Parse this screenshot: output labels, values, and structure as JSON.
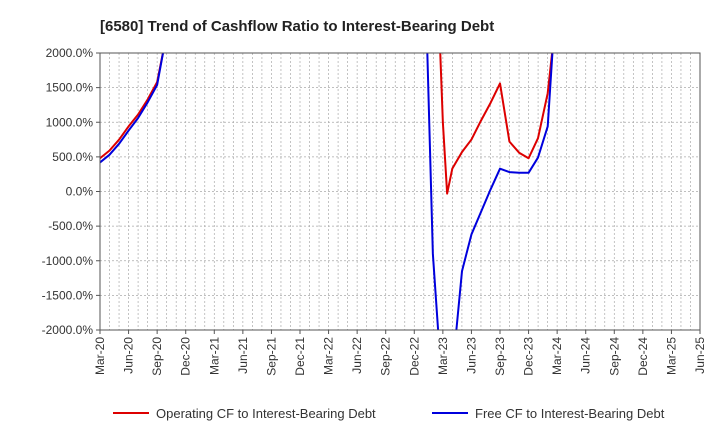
{
  "chart_data": {
    "type": "line",
    "title": "[6580]  Trend of Cashflow Ratio to Interest-Bearing Debt",
    "xlabel": "",
    "ylabel": "",
    "ylim": [
      -2000,
      2000
    ],
    "yticks": [
      2000,
      1500,
      1000,
      500,
      0,
      -500,
      -1000,
      -1500,
      -2000
    ],
    "ytick_labels": [
      "2000.0%",
      "1500.0%",
      "1000.0%",
      "500.0%",
      "0.0%",
      "-500.0%",
      "-1000.0%",
      "-1500.0%",
      "-2000.0%"
    ],
    "x_categories": [
      "Mar-20",
      "Jun-20",
      "Sep-20",
      "Dec-20",
      "Mar-21",
      "Jun-21",
      "Sep-21",
      "Dec-21",
      "Mar-22",
      "Jun-22",
      "Sep-22",
      "Dec-22",
      "Mar-23",
      "Jun-23",
      "Sep-23",
      "Dec-23",
      "Mar-24",
      "Jun-24",
      "Sep-24",
      "Dec-24",
      "Mar-25",
      "Jun-25"
    ],
    "grid": true,
    "grid_style": "dashed",
    "legend_position": "bottom",
    "series": [
      {
        "name": "Operating CF to Interest-Bearing Debt",
        "color": "#dd0000",
        "points": [
          {
            "x": 0,
            "y": 480
          },
          {
            "x": 0.33,
            "y": 590
          },
          {
            "x": 0.67,
            "y": 750
          },
          {
            "x": 1,
            "y": 940
          },
          {
            "x": 1.33,
            "y": 1110
          },
          {
            "x": 1.67,
            "y": 1330
          },
          {
            "x": 2,
            "y": 1580
          },
          {
            "x": 2.25,
            "y": 2100
          },
          {
            "x": 11.9,
            "y": 2100
          },
          {
            "x": 12,
            "y": 1000
          },
          {
            "x": 12.15,
            "y": -30
          },
          {
            "x": 12.33,
            "y": 330
          },
          {
            "x": 12.67,
            "y": 570
          },
          {
            "x": 13,
            "y": 750
          },
          {
            "x": 13.33,
            "y": 1020
          },
          {
            "x": 13.67,
            "y": 1280
          },
          {
            "x": 14,
            "y": 1560
          },
          {
            "x": 14.33,
            "y": 720
          },
          {
            "x": 14.67,
            "y": 560
          },
          {
            "x": 15,
            "y": 480
          },
          {
            "x": 15.33,
            "y": 770
          },
          {
            "x": 15.67,
            "y": 1420
          },
          {
            "x": 15.85,
            "y": 2100
          }
        ]
      },
      {
        "name": "Free CF to Interest-Bearing Debt",
        "color": "#0000dd",
        "points": [
          {
            "x": 0,
            "y": 420
          },
          {
            "x": 0.33,
            "y": 530
          },
          {
            "x": 0.67,
            "y": 690
          },
          {
            "x": 1,
            "y": 880
          },
          {
            "x": 1.33,
            "y": 1060
          },
          {
            "x": 1.67,
            "y": 1290
          },
          {
            "x": 2,
            "y": 1540
          },
          {
            "x": 2.25,
            "y": 2100
          },
          {
            "x": 11.45,
            "y": 2100
          },
          {
            "x": 11.65,
            "y": -900
          },
          {
            "x": 11.85,
            "y": -2100
          },
          {
            "x": 12.45,
            "y": -2100
          },
          {
            "x": 12.67,
            "y": -1150
          },
          {
            "x": 13,
            "y": -620
          },
          {
            "x": 13.33,
            "y": -300
          },
          {
            "x": 13.67,
            "y": 30
          },
          {
            "x": 14,
            "y": 330
          },
          {
            "x": 14.33,
            "y": 280
          },
          {
            "x": 14.67,
            "y": 270
          },
          {
            "x": 15,
            "y": 270
          },
          {
            "x": 15.33,
            "y": 490
          },
          {
            "x": 15.67,
            "y": 940
          },
          {
            "x": 15.85,
            "y": 2100
          }
        ]
      }
    ]
  }
}
